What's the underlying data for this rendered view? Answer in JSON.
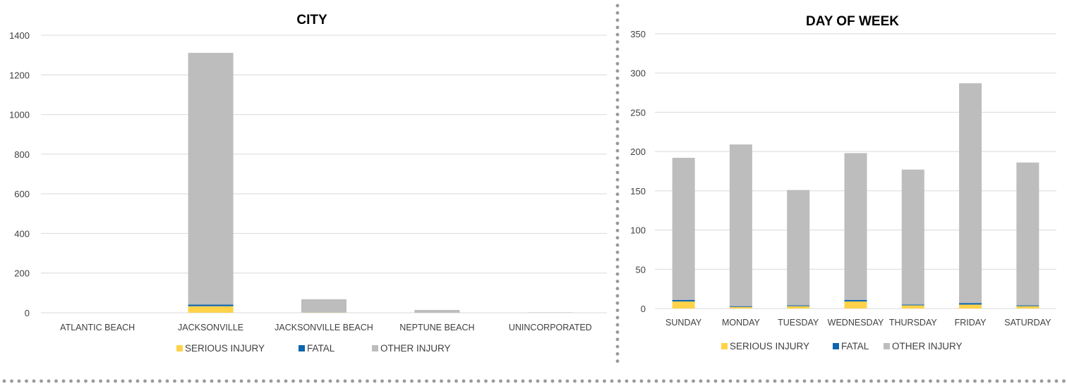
{
  "colors": {
    "serious": "#FFD24A",
    "fatal": "#0E64AE",
    "other": "#BDBDBD",
    "grid": "#D9D9D9",
    "dots": "#9A9A9A",
    "text": "#404040",
    "title": "#000000"
  },
  "chart_data": [
    {
      "type": "bar",
      "stacked": true,
      "title": "CITY",
      "categories": [
        "ATLANTIC BEACH",
        "JACKSONVILLE",
        "JACKSONVILLE BEACH",
        "NEPTUNE BEACH",
        "UNINCORPORATED"
      ],
      "y_ticks": [
        "0",
        "200",
        "400",
        "600",
        "800",
        "1000",
        "1200",
        "1400"
      ],
      "ylim": [
        0,
        1400
      ],
      "grid": true,
      "legend_position": "bottom",
      "series": [
        {
          "name": "SERIOUS INJURY",
          "color": "#FFD24A",
          "values": [
            0,
            33,
            1,
            0,
            0
          ]
        },
        {
          "name": "FATAL",
          "color": "#0E64AE",
          "values": [
            0,
            8,
            0,
            0,
            0
          ]
        },
        {
          "name": "OTHER INJURY",
          "color": "#BDBDBD",
          "values": [
            0,
            1270,
            67,
            14,
            2
          ]
        }
      ]
    },
    {
      "type": "bar",
      "stacked": true,
      "title": "DAY OF WEEK",
      "categories": [
        "SUNDAY",
        "MONDAY",
        "TUESDAY",
        "WEDNESDAY",
        "THURSDAY",
        "FRIDAY",
        "SATURDAY"
      ],
      "y_ticks": [
        "0",
        "50",
        "100",
        "150",
        "200",
        "250",
        "300",
        "350"
      ],
      "ylim": [
        0,
        350
      ],
      "grid": true,
      "legend_position": "bottom",
      "series": [
        {
          "name": "SERIOUS INJURY",
          "color": "#FFD24A",
          "values": [
            9,
            2,
            3,
            9,
            4,
            5,
            3
          ]
        },
        {
          "name": "FATAL",
          "color": "#0E64AE",
          "values": [
            2,
            1,
            1,
            2,
            1,
            2,
            1
          ]
        },
        {
          "name": "OTHER INJURY",
          "color": "#BDBDBD",
          "values": [
            181,
            206,
            147,
            187,
            172,
            280,
            182
          ]
        }
      ]
    }
  ]
}
